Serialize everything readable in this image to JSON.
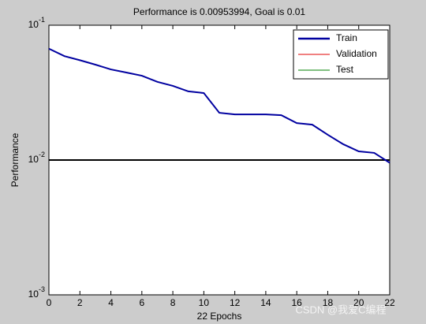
{
  "chart_data": {
    "type": "line",
    "title": "Performance is 0.00953994, Goal is 0.01",
    "xlabel": "22 Epochs",
    "ylabel": "Performance",
    "x": [
      0,
      1,
      2,
      3,
      4,
      5,
      6,
      7,
      8,
      9,
      10,
      11,
      12,
      13,
      14,
      15,
      16,
      17,
      18,
      19,
      20,
      21,
      22
    ],
    "series": [
      {
        "name": "Train",
        "color": "#0000a0",
        "values": [
          0.067,
          0.059,
          0.055,
          0.051,
          0.047,
          0.0446,
          0.0422,
          0.038,
          0.0355,
          0.0323,
          0.0314,
          0.0224,
          0.0218,
          0.0218,
          0.0218,
          0.0215,
          0.0188,
          0.0183,
          0.0154,
          0.0131,
          0.0116,
          0.0113,
          0.00953994
        ]
      },
      {
        "name": "Validation",
        "color": "#e00000"
      },
      {
        "name": "Test",
        "color": "#008000"
      }
    ],
    "goal": 0.01,
    "goal_color": "#000000",
    "xlim": [
      0,
      22
    ],
    "xticks": [
      0,
      2,
      4,
      6,
      8,
      10,
      12,
      14,
      16,
      18,
      20,
      22
    ],
    "ylim": [
      0.001,
      0.1
    ],
    "yticks": [
      {
        "value": 0.001,
        "label": "10^-3"
      },
      {
        "value": 0.01,
        "label": "10^-2"
      },
      {
        "value": 0.1,
        "label": "10^-1"
      }
    ],
    "log_y": true,
    "legend": "upper right",
    "watermark": "CSDN @我爱C编程"
  }
}
